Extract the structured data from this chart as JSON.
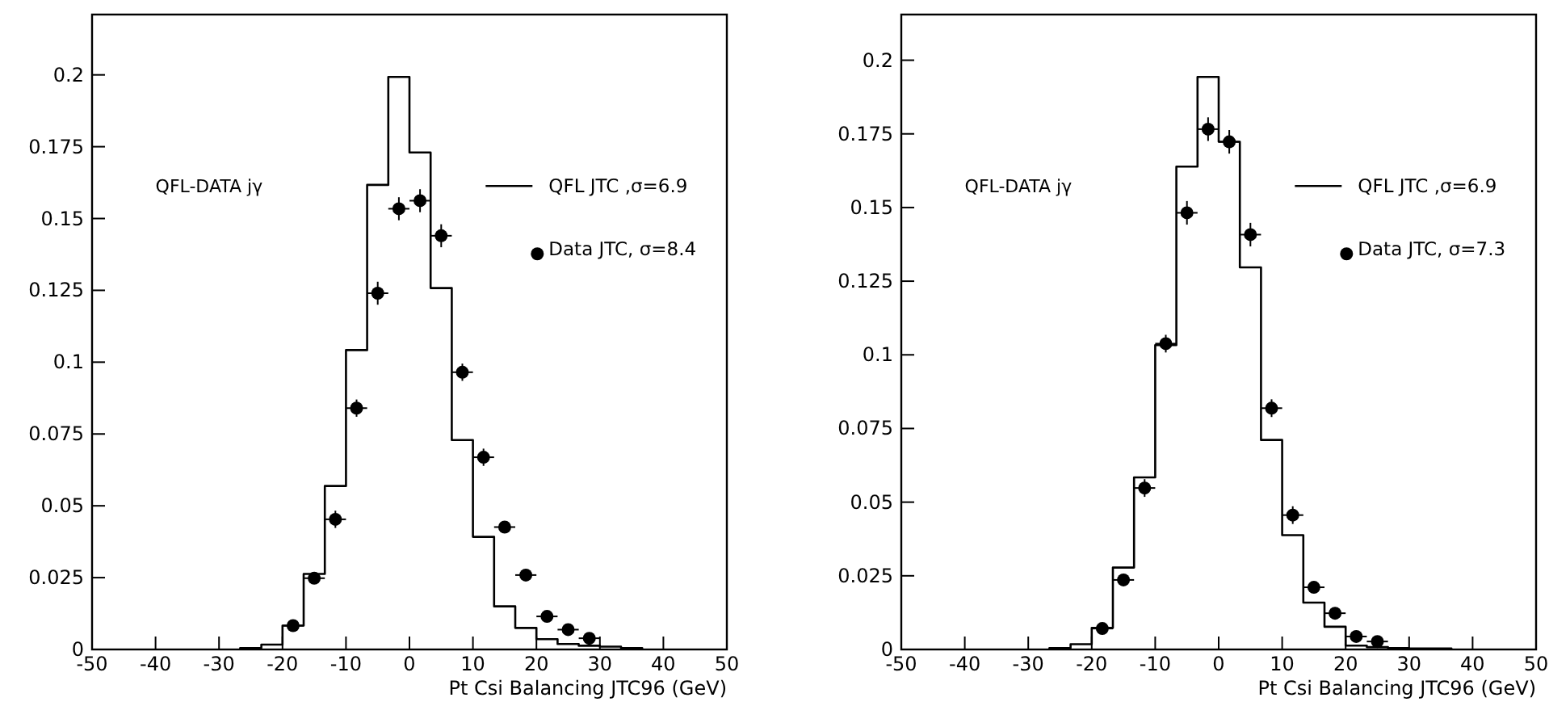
{
  "chart_data": [
    {
      "type": "histogram",
      "xlabel": "Pt Csi Balancing JTC96 (GeV)",
      "annotations": [
        "QFL-DATA jγ"
      ],
      "legend": "top right",
      "grid": false,
      "xlim": [
        -50,
        50
      ],
      "xticks": [
        -50,
        -40,
        -30,
        -20,
        -10,
        0,
        10,
        20,
        30,
        40,
        50
      ],
      "ylim": [
        0,
        0.221
      ],
      "yticks": [
        0,
        0.025,
        0.05,
        0.075,
        0.1,
        0.125,
        0.15,
        0.175,
        0.2
      ],
      "bins": [
        -26.667,
        -23.333,
        -20,
        -16.667,
        -13.333,
        -10,
        -6.667,
        -3.333,
        0,
        3.333,
        6.667,
        10,
        13.333,
        16.667,
        20,
        23.333,
        26.667,
        30,
        33.333,
        36.667
      ],
      "series": [
        {
          "name": "QFL JTC ,σ=6.9",
          "color": "#000000",
          "values": [
            0.0005,
            0.0017,
            0.0083,
            0.0263,
            0.0569,
            0.1042,
            0.1617,
            0.1993,
            0.173,
            0.1258,
            0.0729,
            0.0392,
            0.015,
            0.0075,
            0.0036,
            0.0019,
            0.0013,
            0.001,
            0.0005
          ]
        },
        {
          "type": "scatter",
          "name": "Data JTC, σ=8.4",
          "color": "#000000",
          "marker": "circle",
          "x": [
            -18.333,
            -15,
            -11.667,
            -8.333,
            -5,
            -1.667,
            1.667,
            5,
            8.333,
            11.667,
            15,
            18.333,
            21.667,
            25,
            28.333
          ],
          "values": [
            0.0083,
            0.0248,
            0.0453,
            0.084,
            0.124,
            0.1534,
            0.1562,
            0.144,
            0.0965,
            0.0669,
            0.0426,
            0.0259,
            0.0115,
            0.0069,
            0.0039
          ],
          "errors": [
            0.002,
            0.002,
            0.003,
            0.003,
            0.004,
            0.004,
            0.004,
            0.004,
            0.003,
            0.003,
            0.002,
            0.002,
            0.002,
            0.001,
            0.001
          ],
          "xerrors": [
            1.667,
            1.667,
            1.667,
            1.667,
            1.667,
            1.667,
            1.667,
            1.667,
            1.667,
            1.667,
            1.667,
            1.667,
            1.667,
            1.667,
            1.667
          ]
        }
      ]
    },
    {
      "type": "histogram",
      "xlabel": "Pt Csi Balancing JTC96 (GeV)",
      "annotations": [
        "QFL-DATA jγ"
      ],
      "legend": "top right",
      "grid": false,
      "xlim": [
        -50,
        50
      ],
      "xticks": [
        -50,
        -40,
        -30,
        -20,
        -10,
        0,
        10,
        20,
        30,
        40,
        50
      ],
      "ylim": [
        0,
        0.2155
      ],
      "yticks": [
        0,
        0.025,
        0.05,
        0.075,
        0.1,
        0.125,
        0.15,
        0.175,
        0.2
      ],
      "bins": [
        -26.667,
        -23.333,
        -20,
        -16.667,
        -13.333,
        -10,
        -6.667,
        -3.333,
        0,
        3.333,
        6.667,
        10,
        13.333,
        16.667,
        20,
        23.333,
        26.667,
        30,
        33.333,
        36.667
      ],
      "series": [
        {
          "name": "QFL JTC ,σ=6.9",
          "color": "#000000",
          "values": [
            0.0005,
            0.0018,
            0.0073,
            0.0278,
            0.0584,
            0.1033,
            0.1639,
            0.1943,
            0.1723,
            0.1297,
            0.0711,
            0.0388,
            0.0159,
            0.0077,
            0.0013,
            0.0008,
            0.0005,
            0.0003,
            0.0003
          ]
        },
        {
          "type": "scatter",
          "name": "Data JTC, σ=7.3",
          "color": "#000000",
          "marker": "circle",
          "x": [
            -18.333,
            -15,
            -11.667,
            -8.333,
            -5,
            -1.667,
            1.667,
            5,
            8.333,
            11.667,
            15,
            18.333,
            21.667,
            25
          ],
          "values": [
            0.0071,
            0.0236,
            0.0548,
            0.1038,
            0.1482,
            0.1766,
            0.1723,
            0.1408,
            0.0819,
            0.0456,
            0.0211,
            0.0123,
            0.0044,
            0.0027
          ],
          "errors": [
            0.002,
            0.002,
            0.003,
            0.003,
            0.004,
            0.004,
            0.004,
            0.004,
            0.003,
            0.003,
            0.002,
            0.002,
            0.001,
            0.001
          ],
          "xerrors": [
            1.667,
            1.667,
            1.667,
            1.667,
            1.667,
            1.667,
            1.667,
            1.667,
            1.667,
            1.667,
            1.667,
            1.667,
            1.667,
            1.667
          ]
        }
      ]
    }
  ]
}
